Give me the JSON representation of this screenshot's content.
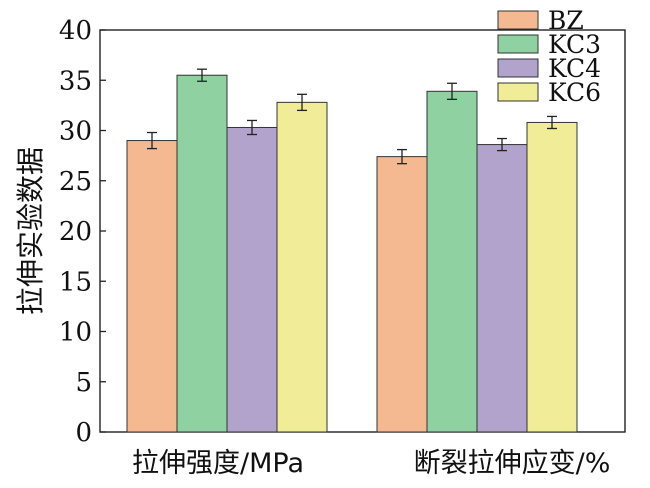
{
  "chart_data": {
    "type": "bar",
    "title": "",
    "xlabel": "",
    "ylabel": "拉伸实验数据",
    "ylim": [
      0,
      40
    ],
    "yticks": [
      0,
      5,
      10,
      15,
      20,
      25,
      30,
      35,
      40
    ],
    "categories": [
      "拉伸强度/MPa",
      "断裂拉伸应变/%"
    ],
    "series": [
      {
        "name": "BZ",
        "color": "#f4b990",
        "values": [
          29.0,
          27.4
        ],
        "errors": [
          0.8,
          0.7
        ]
      },
      {
        "name": "KC3",
        "color": "#8fd1a1",
        "values": [
          35.5,
          33.9
        ],
        "errors": [
          0.6,
          0.8
        ]
      },
      {
        "name": "KC4",
        "color": "#b1a3cc",
        "values": [
          30.3,
          28.6
        ],
        "errors": [
          0.7,
          0.6
        ]
      },
      {
        "name": "KC6",
        "color": "#f0ec98",
        "values": [
          32.8,
          30.8
        ],
        "errors": [
          0.8,
          0.6
        ]
      }
    ],
    "legend": "top-right",
    "grid": false
  }
}
